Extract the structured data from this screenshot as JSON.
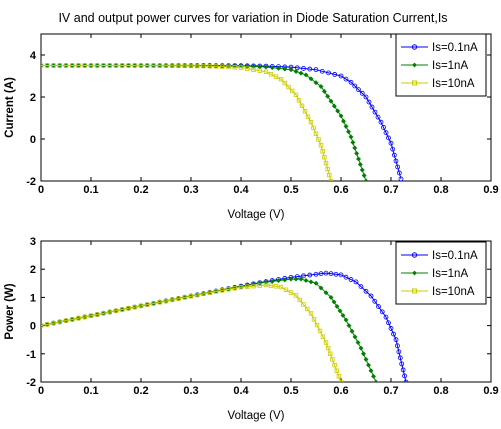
{
  "chart_data": [
    {
      "type": "line",
      "title": "IV and output power curves for variation in Diode Saturation Current,Is",
      "xlabel": "Voltage (V)",
      "ylabel": "Current (A)",
      "xlim": [
        0,
        0.9
      ],
      "ylim": [
        -2,
        5
      ],
      "xticks": [
        "0",
        "0.1",
        "0.2",
        "0.3",
        "0.4",
        "0.5",
        "0.6",
        "0.7",
        "0.8",
        "0.9"
      ],
      "yticks": [
        "4",
        "2",
        "0",
        "-2"
      ],
      "legend_position": "top-right",
      "grid": false,
      "series": [
        {
          "name": "Is=0.1nA",
          "color": "#0000ff",
          "marker": "circle",
          "x": [
            0,
            0.1,
            0.2,
            0.3,
            0.4,
            0.45,
            0.5,
            0.55,
            0.6,
            0.62,
            0.65,
            0.68,
            0.7,
            0.72
          ],
          "y": [
            3.5,
            3.5,
            3.5,
            3.5,
            3.49,
            3.47,
            3.42,
            3.3,
            3.0,
            2.7,
            2.0,
            0.8,
            -0.2,
            -1.9
          ]
        },
        {
          "name": "Is=1nA",
          "color": "#008000",
          "marker": "diamond",
          "x": [
            0,
            0.1,
            0.2,
            0.3,
            0.4,
            0.45,
            0.5,
            0.53,
            0.56,
            0.6,
            0.62,
            0.65
          ],
          "y": [
            3.5,
            3.5,
            3.5,
            3.5,
            3.48,
            3.43,
            3.3,
            3.05,
            2.5,
            1.1,
            0.1,
            -2.0
          ]
        },
        {
          "name": "Is=10nA",
          "color": "#cccc00",
          "marker": "square",
          "x": [
            0,
            0.1,
            0.2,
            0.3,
            0.35,
            0.4,
            0.45,
            0.48,
            0.51,
            0.54,
            0.56,
            0.58
          ],
          "y": [
            3.5,
            3.5,
            3.5,
            3.48,
            3.46,
            3.4,
            3.2,
            2.85,
            2.1,
            0.8,
            -0.3,
            -2.0
          ]
        }
      ]
    },
    {
      "type": "line",
      "title": "",
      "xlabel": "Voltage (V)",
      "ylabel": "Power (W)",
      "xlim": [
        0,
        0.9
      ],
      "ylim": [
        -2,
        3
      ],
      "xticks": [
        "0",
        "0.1",
        "0.2",
        "0.3",
        "0.4",
        "0.5",
        "0.6",
        "0.7",
        "0.8",
        "0.9"
      ],
      "yticks": [
        "3",
        "2",
        "1",
        "0",
        "-1",
        "-2"
      ],
      "legend_position": "top-right",
      "grid": false,
      "series": [
        {
          "name": "Is=0.1nA",
          "color": "#0000ff",
          "marker": "circle",
          "x": [
            0,
            0.1,
            0.2,
            0.3,
            0.4,
            0.45,
            0.5,
            0.55,
            0.57,
            0.6,
            0.63,
            0.66,
            0.69,
            0.71,
            0.73
          ],
          "y": [
            0,
            0.35,
            0.7,
            1.05,
            1.4,
            1.56,
            1.71,
            1.82,
            1.86,
            1.8,
            1.55,
            1.05,
            0.3,
            -0.5,
            -2.0
          ]
        },
        {
          "name": "Is=1nA",
          "color": "#008000",
          "marker": "diamond",
          "x": [
            0,
            0.1,
            0.2,
            0.3,
            0.4,
            0.45,
            0.5,
            0.52,
            0.55,
            0.58,
            0.61,
            0.64,
            0.67
          ],
          "y": [
            0,
            0.35,
            0.7,
            1.05,
            1.39,
            1.54,
            1.65,
            1.65,
            1.5,
            1.0,
            0.2,
            -0.8,
            -2.0
          ]
        },
        {
          "name": "Is=10nA",
          "color": "#cccc00",
          "marker": "square",
          "x": [
            0,
            0.1,
            0.2,
            0.3,
            0.35,
            0.4,
            0.45,
            0.48,
            0.51,
            0.54,
            0.57,
            0.6
          ],
          "y": [
            0,
            0.35,
            0.7,
            1.04,
            1.21,
            1.36,
            1.44,
            1.37,
            1.07,
            0.43,
            -0.6,
            -2.0
          ]
        }
      ]
    }
  ]
}
